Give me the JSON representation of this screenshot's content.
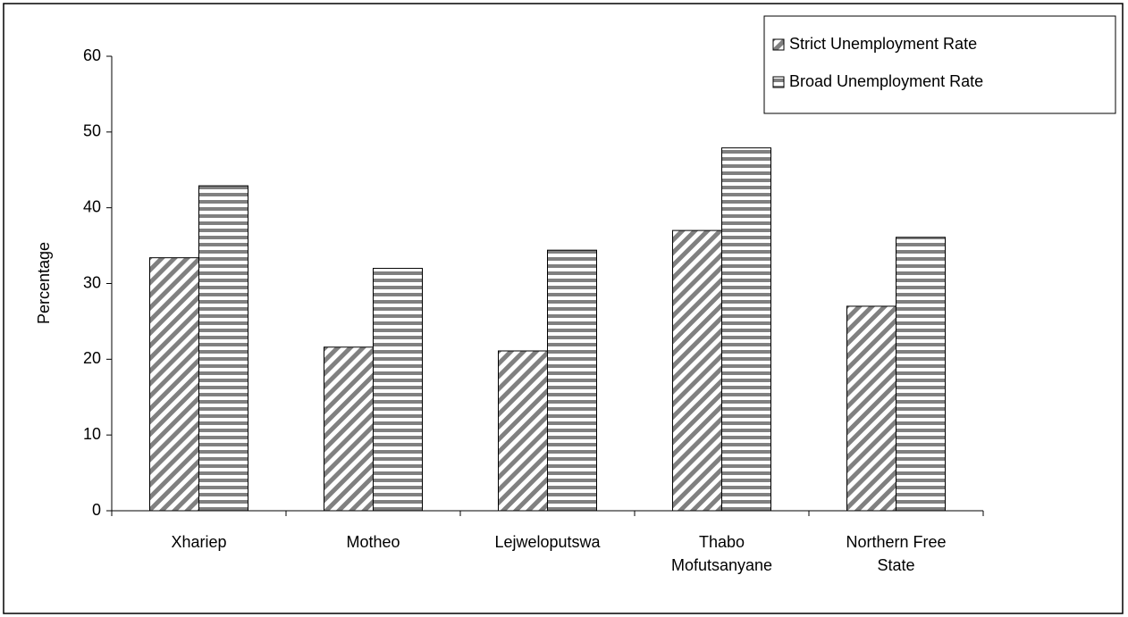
{
  "chart_data": {
    "type": "bar",
    "y_label": "Percentage",
    "categories": [
      "Xhariep",
      "Motheo",
      "Lejweloputswa",
      "Thabo Mofutsanyane",
      "Northern Free State"
    ],
    "series": [
      {
        "name": "Strict Unemployment Rate",
        "color": "#808080",
        "pattern": "diagonal",
        "values": [
          33.4,
          21.6,
          21.1,
          37.0,
          27.0
        ]
      },
      {
        "name": "Broad Unemployment Rate",
        "color": "#808080",
        "pattern": "horizontal",
        "values": [
          42.9,
          32.0,
          34.4,
          47.9,
          36.1
        ]
      }
    ],
    "ylim": [
      0,
      60
    ],
    "yticks": [
      0,
      10,
      20,
      30,
      40,
      50,
      60
    ],
    "legend": "top-right"
  }
}
